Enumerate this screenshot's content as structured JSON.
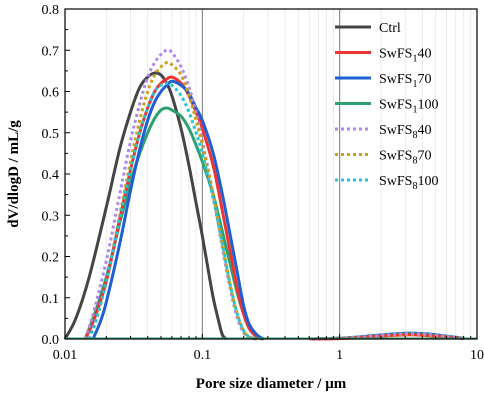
{
  "chart_data": {
    "type": "line",
    "title": "",
    "xlabel": "Pore size diameter / μm",
    "ylabel": "dV/dlogD / mL/g",
    "xscale": "log",
    "xlim": [
      0.01,
      10
    ],
    "ylim": [
      0,
      0.8
    ],
    "xticks": [
      0.01,
      0.1,
      1,
      10
    ],
    "xtick_labels": [
      "0.01",
      "0.1",
      "1",
      "10"
    ],
    "yticks": [
      0,
      0.1,
      0.2,
      0.3,
      0.4,
      0.5,
      0.6,
      0.7,
      0.8
    ],
    "ytick_labels": [
      "0.0",
      "0.1",
      "0.2",
      "0.3",
      "0.4",
      "0.5",
      "0.6",
      "0.7",
      "0.8"
    ],
    "grid": "vertical lines at decades",
    "legend_position": "top-right",
    "series": [
      {
        "name": "Ctrl",
        "base": "Ctrl",
        "sub": "",
        "tail": "",
        "color": "#444444",
        "dash": "solid",
        "x": [
          0.01,
          0.012,
          0.015,
          0.02,
          0.025,
          0.03,
          0.035,
          0.04,
          0.045,
          0.05,
          0.055,
          0.06,
          0.07,
          0.08,
          0.09,
          0.1,
          0.11,
          0.12,
          0.13,
          0.14,
          0.15
        ],
        "y": [
          0.0,
          0.05,
          0.15,
          0.32,
          0.46,
          0.55,
          0.61,
          0.635,
          0.645,
          0.64,
          0.62,
          0.59,
          0.51,
          0.42,
          0.33,
          0.25,
          0.17,
          0.1,
          0.05,
          0.01,
          0.0
        ]
      },
      {
        "name": "SwFS140",
        "base": "SwFS",
        "sub": "1",
        "tail": "40",
        "color": "#ee3333",
        "dash": "solid",
        "x": [
          0.014,
          0.016,
          0.02,
          0.025,
          0.03,
          0.035,
          0.04,
          0.045,
          0.05,
          0.055,
          0.06,
          0.07,
          0.08,
          0.09,
          0.1,
          0.12,
          0.14,
          0.16,
          0.18,
          0.2,
          0.22,
          0.25,
          0.28
        ],
        "y": [
          0.0,
          0.04,
          0.14,
          0.29,
          0.41,
          0.5,
          0.56,
          0.6,
          0.62,
          0.63,
          0.635,
          0.62,
          0.59,
          0.55,
          0.51,
          0.42,
          0.31,
          0.21,
          0.12,
          0.06,
          0.025,
          0.005,
          0.0
        ]
      },
      {
        "name": "SwFS170",
        "base": "SwFS",
        "sub": "1",
        "tail": "70",
        "color": "#1f5fd1",
        "dash": "solid",
        "x": [
          0.016,
          0.018,
          0.02,
          0.025,
          0.03,
          0.035,
          0.04,
          0.045,
          0.05,
          0.055,
          0.06,
          0.07,
          0.08,
          0.09,
          0.1,
          0.12,
          0.14,
          0.16,
          0.18,
          0.2,
          0.22,
          0.25,
          0.28
        ],
        "y": [
          0.0,
          0.04,
          0.09,
          0.23,
          0.36,
          0.46,
          0.53,
          0.575,
          0.6,
          0.615,
          0.625,
          0.615,
          0.595,
          0.56,
          0.53,
          0.45,
          0.35,
          0.25,
          0.16,
          0.08,
          0.035,
          0.01,
          0.0
        ]
      },
      {
        "name": "SwFS1100",
        "base": "SwFS",
        "sub": "1",
        "tail": "100",
        "color": "#2ea06f",
        "dash": "solid",
        "x": [
          0.014,
          0.016,
          0.02,
          0.025,
          0.03,
          0.035,
          0.04,
          0.045,
          0.05,
          0.055,
          0.06,
          0.07,
          0.08,
          0.09,
          0.1,
          0.12,
          0.14,
          0.16,
          0.18,
          0.2,
          0.22,
          0.25,
          0.28
        ],
        "y": [
          0.0,
          0.05,
          0.15,
          0.28,
          0.38,
          0.45,
          0.5,
          0.535,
          0.555,
          0.56,
          0.555,
          0.54,
          0.51,
          0.47,
          0.43,
          0.35,
          0.26,
          0.18,
          0.11,
          0.06,
          0.025,
          0.005,
          0.0
        ]
      },
      {
        "name": "SwFS840",
        "base": "SwFS",
        "sub": "8",
        "tail": "40",
        "color": "#b088e8",
        "dash": "dot",
        "x": [
          0.014,
          0.016,
          0.02,
          0.025,
          0.03,
          0.035,
          0.04,
          0.045,
          0.05,
          0.055,
          0.06,
          0.07,
          0.08,
          0.09,
          0.1,
          0.12,
          0.14,
          0.16,
          0.18,
          0.2,
          0.22,
          0.25
        ],
        "y": [
          0.0,
          0.06,
          0.19,
          0.35,
          0.48,
          0.57,
          0.635,
          0.67,
          0.69,
          0.7,
          0.695,
          0.66,
          0.61,
          0.55,
          0.48,
          0.35,
          0.22,
          0.12,
          0.05,
          0.015,
          0.003,
          0.0
        ]
      },
      {
        "name": "SwFS870",
        "base": "SwFS",
        "sub": "8",
        "tail": "70",
        "color": "#c9a214",
        "dash": "dot",
        "x": [
          0.015,
          0.017,
          0.02,
          0.025,
          0.03,
          0.035,
          0.04,
          0.045,
          0.05,
          0.055,
          0.06,
          0.07,
          0.08,
          0.09,
          0.1,
          0.12,
          0.14,
          0.16,
          0.18,
          0.2,
          0.22,
          0.25
        ],
        "y": [
          0.0,
          0.05,
          0.14,
          0.3,
          0.43,
          0.53,
          0.6,
          0.64,
          0.66,
          0.67,
          0.665,
          0.64,
          0.59,
          0.53,
          0.47,
          0.35,
          0.23,
          0.13,
          0.06,
          0.02,
          0.005,
          0.0
        ]
      },
      {
        "name": "SwFS8100",
        "base": "SwFS",
        "sub": "8",
        "tail": "100",
        "color": "#22c5d6",
        "dash": "dot",
        "x": [
          0.015,
          0.017,
          0.02,
          0.025,
          0.03,
          0.035,
          0.04,
          0.045,
          0.05,
          0.055,
          0.06,
          0.07,
          0.08,
          0.09,
          0.1,
          0.12,
          0.14,
          0.16,
          0.18,
          0.2,
          0.22,
          0.25
        ],
        "y": [
          0.0,
          0.05,
          0.14,
          0.29,
          0.41,
          0.5,
          0.56,
          0.6,
          0.615,
          0.62,
          0.615,
          0.59,
          0.55,
          0.5,
          0.45,
          0.34,
          0.23,
          0.13,
          0.06,
          0.02,
          0.005,
          0.0
        ]
      }
    ],
    "bump_series": [
      {
        "color": "#1f5fd1",
        "dash": "solid",
        "x": [
          0.6,
          1.0,
          1.5,
          2.2,
          3.0,
          3.5,
          4.5,
          6.0,
          8.0
        ],
        "y": [
          0.0,
          0.002,
          0.006,
          0.011,
          0.014,
          0.014,
          0.012,
          0.007,
          0.002
        ]
      },
      {
        "color": "#2ea06f",
        "dash": "solid",
        "x": [
          0.6,
          1.0,
          1.5,
          2.2,
          3.0,
          3.5,
          4.5,
          6.0,
          8.0
        ],
        "y": [
          0.0,
          0.002,
          0.005,
          0.009,
          0.012,
          0.012,
          0.01,
          0.006,
          0.002
        ]
      },
      {
        "color": "#ee3333",
        "dash": "solid",
        "x": [
          0.6,
          1.0,
          1.5,
          2.2,
          3.0,
          3.5,
          4.5,
          6.0,
          8.0
        ],
        "y": [
          0.0,
          0.001,
          0.004,
          0.008,
          0.01,
          0.01,
          0.008,
          0.005,
          0.001
        ]
      },
      {
        "color": "#c9a214",
        "dash": "dot",
        "x": [
          0.6,
          1.0,
          1.5,
          2.2,
          3.0,
          3.5,
          4.5,
          6.0,
          8.0
        ],
        "y": [
          0.0,
          0.002,
          0.005,
          0.009,
          0.011,
          0.011,
          0.009,
          0.005,
          0.001
        ]
      },
      {
        "color": "#b088e8",
        "dash": "dot",
        "x": [
          0.6,
          1.0,
          1.5,
          2.2,
          3.0,
          3.5,
          4.5,
          6.0,
          8.0
        ],
        "y": [
          0.0,
          0.002,
          0.005,
          0.01,
          0.013,
          0.013,
          0.011,
          0.006,
          0.002
        ]
      }
    ]
  }
}
